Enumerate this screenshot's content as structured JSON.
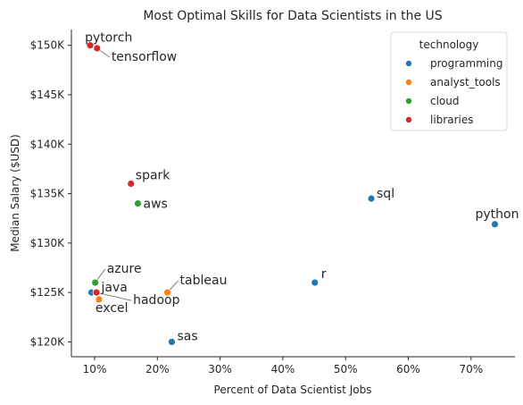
{
  "chart_data": {
    "type": "scatter",
    "title": "Most Optimal Skills for Data Scientists in the US",
    "xlabel": "Percent of Data Scientist Jobs",
    "ylabel": "Median Salary ($USD)",
    "xlim": [
      6.3,
      77
    ],
    "ylim": [
      118500,
      151600
    ],
    "x_ticks": [
      10,
      20,
      30,
      40,
      50,
      60,
      70
    ],
    "x_tick_labels": [
      "10%",
      "20%",
      "30%",
      "40%",
      "50%",
      "60%",
      "70%"
    ],
    "y_ticks": [
      120000,
      125000,
      130000,
      135000,
      140000,
      145000,
      150000
    ],
    "y_tick_labels": [
      "$120K",
      "$125K",
      "$130K",
      "$135K",
      "$140K",
      "$145K",
      "$150K"
    ],
    "grid": false,
    "legend_title": "technology",
    "legend_placement": "top-right",
    "series": [
      {
        "name": "programming",
        "color": "#1f77b4"
      },
      {
        "name": "analyst_tools",
        "color": "#ff7f0e"
      },
      {
        "name": "cloud",
        "color": "#2ca02c"
      },
      {
        "name": "libraries",
        "color": "#d62728"
      }
    ],
    "points": [
      {
        "label": "pytorch",
        "x": 9.3,
        "y": 150000,
        "series": "libraries"
      },
      {
        "label": "tensorflow",
        "x": 10.4,
        "y": 149700,
        "series": "libraries"
      },
      {
        "label": "spark",
        "x": 15.8,
        "y": 136000,
        "series": "libraries"
      },
      {
        "label": "aws",
        "x": 16.9,
        "y": 134000,
        "series": "cloud"
      },
      {
        "label": "sql",
        "x": 54.1,
        "y": 134500,
        "series": "programming"
      },
      {
        "label": "python",
        "x": 73.8,
        "y": 131900,
        "series": "programming"
      },
      {
        "label": "azure",
        "x": 10.1,
        "y": 126000,
        "series": "cloud"
      },
      {
        "label": "java",
        "x": 9.5,
        "y": 125000,
        "series": "programming"
      },
      {
        "label": "hadoop",
        "x": 10.3,
        "y": 125000,
        "series": "libraries"
      },
      {
        "label": "excel",
        "x": 10.7,
        "y": 124300,
        "series": "analyst_tools"
      },
      {
        "label": "tableau",
        "x": 21.6,
        "y": 125000,
        "series": "analyst_tools"
      },
      {
        "label": "r",
        "x": 45.1,
        "y": 126000,
        "series": "programming"
      },
      {
        "label": "sas",
        "x": 22.3,
        "y": 120000,
        "series": "programming"
      }
    ]
  }
}
